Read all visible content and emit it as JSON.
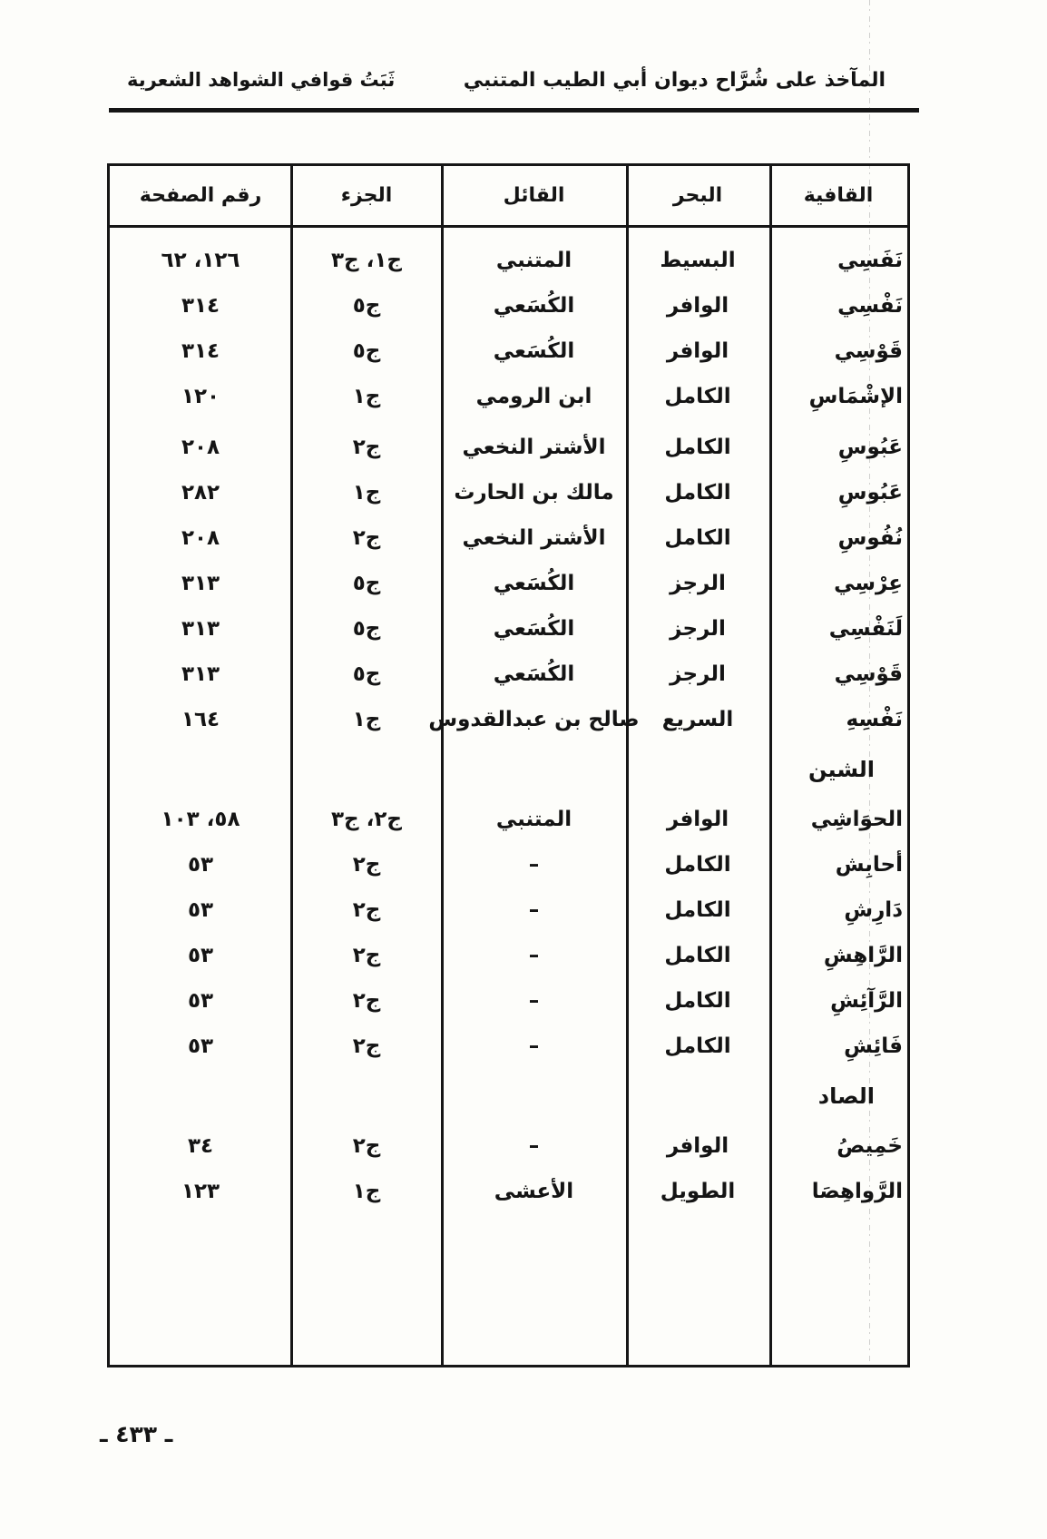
{
  "page_header": {
    "title_right": "المآخذ على شُرَّاح ديوان أبي الطيب المتنبي",
    "title_left": "ثَبَتُ قوافي الشواهد الشعرية"
  },
  "table": {
    "headers": {
      "qafiya": "القافية",
      "bahr": "البحر",
      "qail": "القائل",
      "juz": "الجزء",
      "page": "رقم الصفحة"
    },
    "rows": [
      {
        "type": "entry",
        "qafiya": "نَفَسِي",
        "bahr": "البسيط",
        "qail": "المتنبي",
        "juz": "ج١، ج٣",
        "page": "١٢٦، ٦٢"
      },
      {
        "type": "entry",
        "qafiya": "نَفْسِي",
        "bahr": "الوافر",
        "qail": "الكُسَعي",
        "juz": "ج٥",
        "page": "٣١٤"
      },
      {
        "type": "entry",
        "qafiya": "قَوْسِي",
        "bahr": "الوافر",
        "qail": "الكُسَعي",
        "juz": "ج٥",
        "page": "٣١٤"
      },
      {
        "type": "entry",
        "qafiya": "الإشْمَاسِ",
        "bahr": "الكامل",
        "qail": "ابن الرومي",
        "juz": "ج١",
        "page": "١٢٠"
      },
      {
        "type": "entry",
        "qafiya": "عَبُوسِ",
        "bahr": "الكامل",
        "qail": "الأشتر النخعي",
        "juz": "ج٢",
        "page": "٢٠٨"
      },
      {
        "type": "entry",
        "qafiya": "عَبُوسِ",
        "bahr": "الكامل",
        "qail": "مالك بن الحارث",
        "juz": "ج١",
        "page": "٢٨٢"
      },
      {
        "type": "entry",
        "qafiya": "نُفُوسِ",
        "bahr": "الكامل",
        "qail": "الأشتر النخعي",
        "juz": "ج٢",
        "page": "٢٠٨"
      },
      {
        "type": "entry",
        "qafiya": "عِرْسِي",
        "bahr": "الرجز",
        "qail": "الكُسَعي",
        "juz": "ج٥",
        "page": "٣١٣"
      },
      {
        "type": "entry",
        "qafiya": "لَنَفْسِي",
        "bahr": "الرجز",
        "qail": "الكُسَعي",
        "juz": "ج٥",
        "page": "٣١٣"
      },
      {
        "type": "entry",
        "qafiya": "قَوْسِي",
        "bahr": "الرجز",
        "qail": "الكُسَعي",
        "juz": "ج٥",
        "page": "٣١٣"
      },
      {
        "type": "entry",
        "qafiya": "نَفْسِهِ",
        "bahr": "السريع",
        "qail": "صالح بن عبدالقدوس",
        "juz": "ج١",
        "page": "١٦٤"
      },
      {
        "type": "section",
        "title": "الشين"
      },
      {
        "type": "entry",
        "qafiya": "الحوَاشِي",
        "bahr": "الوافر",
        "qail": "المتنبي",
        "juz": "ج٢، ج٣",
        "page": "٥٨، ١٠٣"
      },
      {
        "type": "entry",
        "qafiya": "أحابِش",
        "bahr": "الكامل",
        "qail": "–",
        "juz": "ج٢",
        "page": "٥٣"
      },
      {
        "type": "entry",
        "qafiya": "دَارِشِ",
        "bahr": "الكامل",
        "qail": "–",
        "juz": "ج٢",
        "page": "٥٣"
      },
      {
        "type": "entry",
        "qafiya": "الرَّاهِشِ",
        "bahr": "الكامل",
        "qail": "–",
        "juz": "ج٢",
        "page": "٥٣"
      },
      {
        "type": "entry",
        "qafiya": "الرَّآئِشِ",
        "bahr": "الكامل",
        "qail": "–",
        "juz": "ج٢",
        "page": "٥٣"
      },
      {
        "type": "entry",
        "qafiya": "فَائِشِ",
        "bahr": "الكامل",
        "qail": "–",
        "juz": "ج٢",
        "page": "٥٣"
      },
      {
        "type": "section",
        "title": "الصاد"
      },
      {
        "type": "entry",
        "qafiya": "خَمِيصُ",
        "bahr": "الوافر",
        "qail": "–",
        "juz": "ج٢",
        "page": "٣٤"
      },
      {
        "type": "entry",
        "qafiya": "الرَّواهِصَا",
        "bahr": "الطويل",
        "qail": "الأعشى",
        "juz": "ج١",
        "page": "١٢٣"
      }
    ]
  },
  "footer": {
    "page_number": "ـ ٤٣٣ ـ"
  }
}
